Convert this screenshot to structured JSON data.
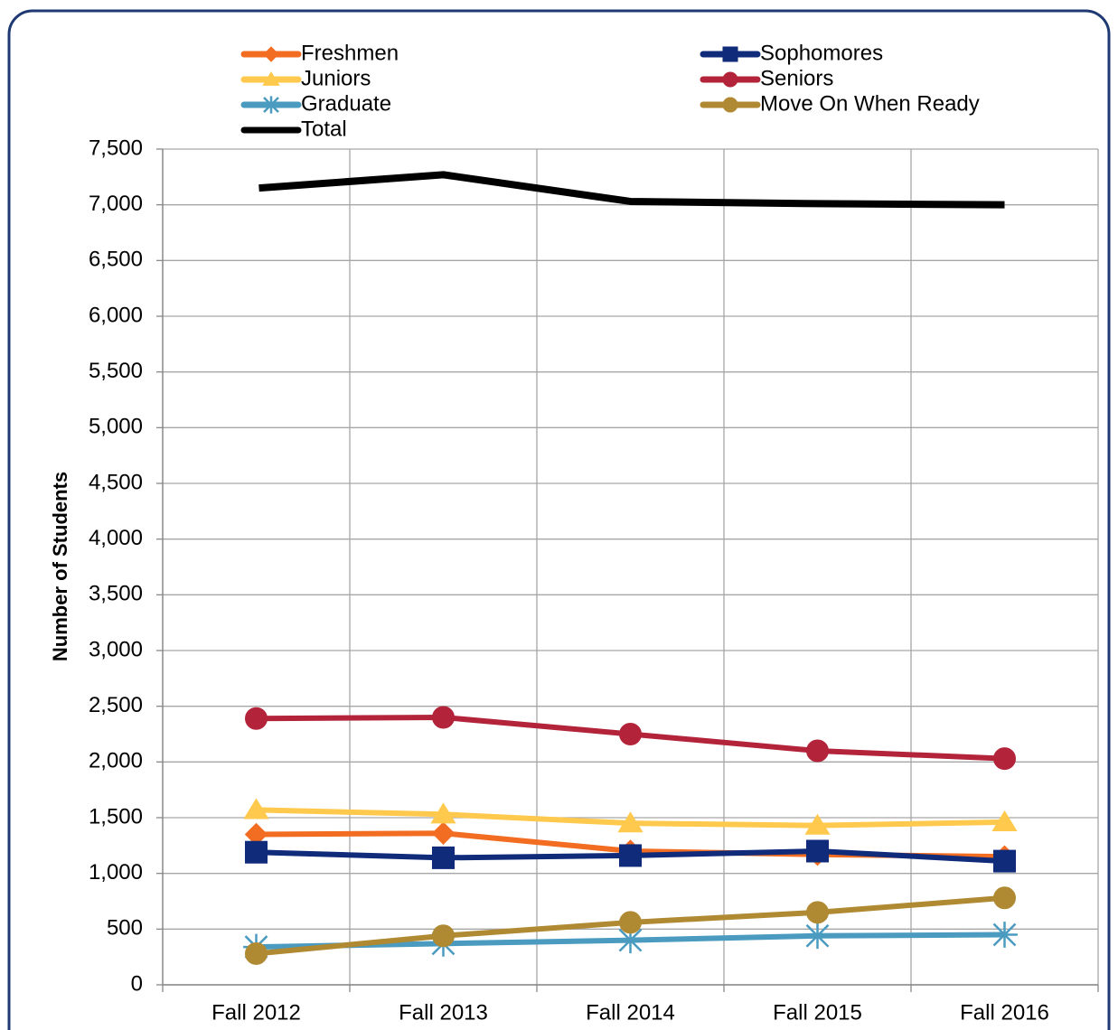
{
  "chart_data": {
    "type": "line",
    "y_label": "Number of Students",
    "categories": [
      "Fall 2012",
      "Fall 2013",
      "Fall 2014",
      "Fall 2015",
      "Fall 2016"
    ],
    "series": [
      {
        "name": "Freshmen",
        "color": "#f26d21",
        "marker": "diamond",
        "values": [
          1350,
          1360,
          1200,
          1170,
          1150
        ]
      },
      {
        "name": "Sophomores",
        "color": "#0f2b7a",
        "marker": "square",
        "values": [
          1190,
          1140,
          1160,
          1200,
          1110
        ]
      },
      {
        "name": "Juniors",
        "color": "#ffc94d",
        "marker": "triangle",
        "values": [
          1570,
          1530,
          1450,
          1430,
          1460
        ]
      },
      {
        "name": "Seniors",
        "color": "#b3243a",
        "marker": "circle",
        "values": [
          2390,
          2400,
          2250,
          2100,
          2030
        ]
      },
      {
        "name": "Graduate",
        "color": "#4a9bbf",
        "marker": "star",
        "values": [
          340,
          370,
          400,
          440,
          450
        ]
      },
      {
        "name": "Move On When Ready",
        "color": "#b08a33",
        "marker": "circle",
        "values": [
          280,
          440,
          560,
          650,
          780
        ]
      },
      {
        "name": "Total",
        "color": "#000000",
        "marker": "none",
        "values": [
          7150,
          7270,
          7030,
          7010,
          7000
        ]
      }
    ],
    "ylim": [
      0,
      7500
    ],
    "yticks": [
      0,
      500,
      {
        "value": 1000,
        "label": "1,000"
      },
      {
        "value": 1500,
        "label": "1,500"
      },
      {
        "value": 2000,
        "label": "2,000"
      },
      {
        "value": 2500,
        "label": "2,500"
      },
      {
        "value": 3000,
        "label": "3,000"
      },
      {
        "value": 3500,
        "label": "3,500"
      },
      {
        "value": 4000,
        "label": "4,000"
      },
      {
        "value": 4500,
        "label": "4,500"
      },
      {
        "value": 5000,
        "label": "5,000"
      },
      {
        "value": 5500,
        "label": "5,500"
      },
      {
        "value": 6000,
        "label": "6,000"
      },
      {
        "value": 6500,
        "label": "6,500"
      },
      {
        "value": 7000,
        "label": "7,000"
      },
      {
        "value": 7500,
        "label": "7,500"
      }
    ],
    "grid": true
  }
}
